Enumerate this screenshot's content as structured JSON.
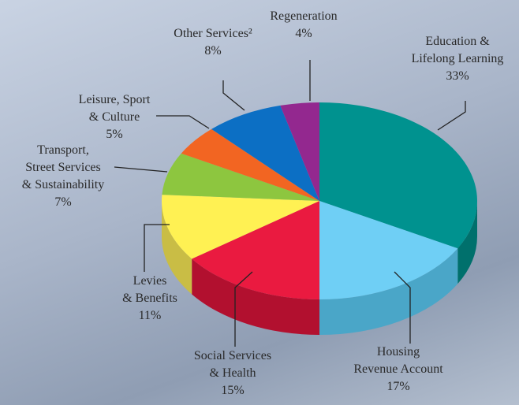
{
  "chart_data": {
    "type": "pie",
    "categories": [
      "Education &\nLifelong Learning",
      "Housing\nRevenue Account",
      "Social Services\n& Health",
      "Levies\n& Benefits",
      "Transport,\nStreet Services\n& Sustainability",
      "Leisure, Sport\n& Culture",
      "Other Services²",
      "Regeneration"
    ],
    "values": [
      33,
      17,
      15,
      11,
      7,
      5,
      8,
      4
    ],
    "value_labels": [
      "33%",
      "17%",
      "15%",
      "11%",
      "7%",
      "5%",
      "8%",
      "4%"
    ],
    "colors": [
      "#00928f",
      "#6fcff5",
      "#ea1a40",
      "#fff153",
      "#8dc63f",
      "#f26522",
      "#0c6fc4",
      "#93288f"
    ],
    "side_colors": [
      "#00706c",
      "#4aa6c8",
      "#b2102f",
      "#c9bd45",
      "#6e9c30",
      "#c04e18",
      "#09559a",
      "#701d6d"
    ]
  }
}
